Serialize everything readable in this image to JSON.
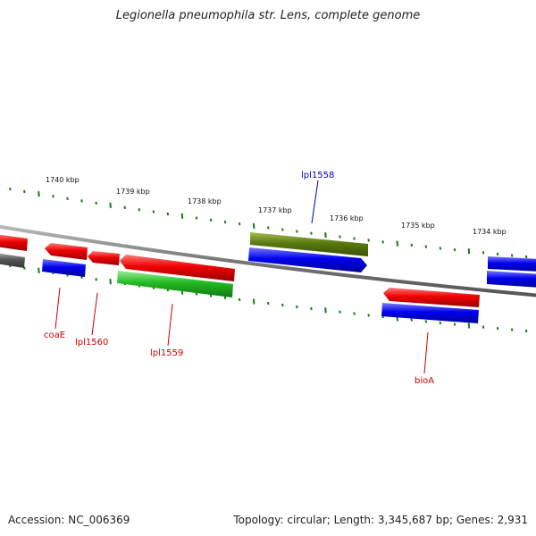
{
  "title": "Legionella pneumophila str. Lens, complete genome",
  "footer": {
    "accession": "Accession: NC_006369",
    "summary": "Topology: circular; Length: 3,345,687 bp; Genes: 2,931"
  },
  "colors": {
    "backbone": "#7a7a7a",
    "tick": "#1a7a1a",
    "gene_red": "#e00000",
    "gene_blue": "#0000e0",
    "gene_green": "#22bb22",
    "gene_olive": "#5a7a10",
    "gene_gray": "#555555",
    "label_red": "#cc0000",
    "label_blue": "#0000cc"
  },
  "scale_labels": [
    "1740 kbp",
    "1739 kbp",
    "1738 kbp",
    "1737 kbp",
    "1736 kbp",
    "1735 kbp",
    "1734 kbp"
  ],
  "gene_labels": [
    {
      "text": "coaE",
      "color": "red"
    },
    {
      "text": "lpl1560",
      "color": "red"
    },
    {
      "text": "lpl1559",
      "color": "red"
    },
    {
      "text": "lpl1558",
      "color": "blue"
    },
    {
      "text": "bioA",
      "color": "red"
    }
  ]
}
